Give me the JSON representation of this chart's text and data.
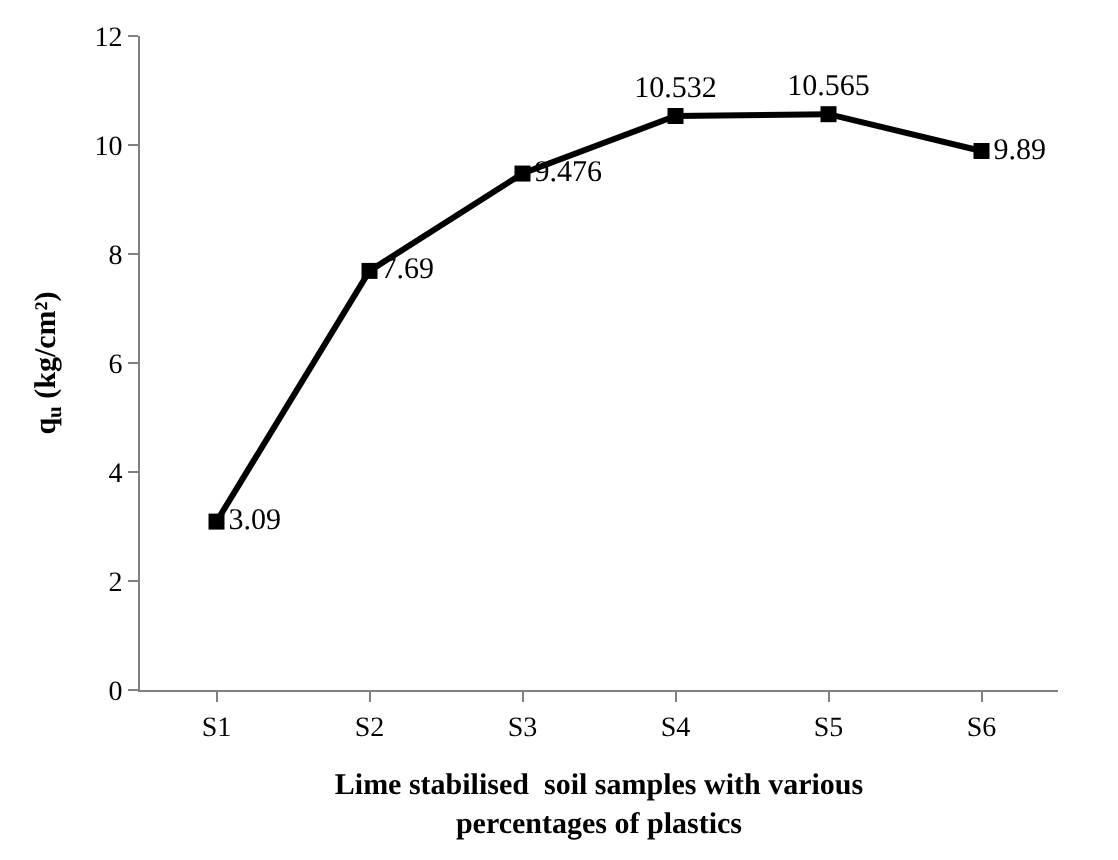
{
  "chart_data": {
    "type": "line",
    "xlabel": "Lime stabilised  soil samples with various\npercentages of plastics",
    "ylabel": "q$_{u}$ (kg/cm²)",
    "categories": [
      "S1",
      "S2",
      "S3",
      "S4",
      "S5",
      "S6"
    ],
    "series": [
      {
        "color": "#000000",
        "values": [
          3.09,
          7.69,
          9.476,
          10.532,
          10.565,
          9.89
        ]
      }
    ],
    "ylim": [
      0,
      12
    ],
    "yticks": [
      0,
      2,
      4,
      6,
      8,
      10,
      12
    ],
    "marker": "square",
    "line_style": "solid",
    "data_labels": true
  }
}
